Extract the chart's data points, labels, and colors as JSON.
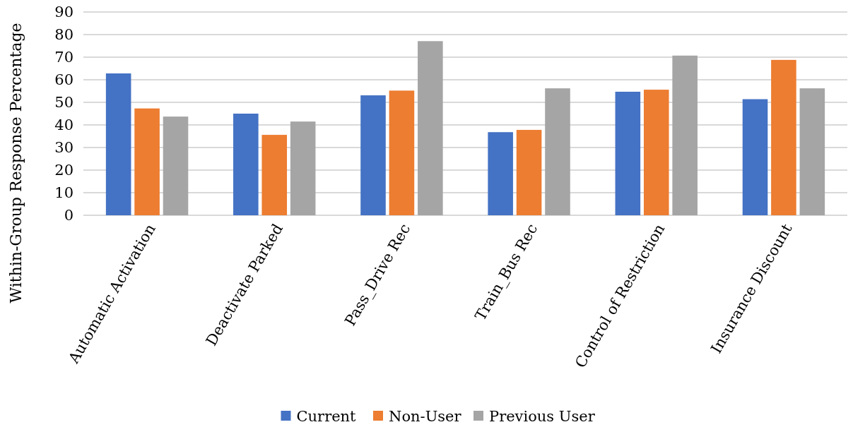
{
  "chart_data": {
    "type": "bar",
    "ylabel": "Within-Group Response Percentage",
    "categories": [
      "Automatic Activation",
      "Deactivate Parked",
      "Pass_Drive Rec",
      "Train_Bus Rec",
      "Control of Restriction",
      "Insurance Discount"
    ],
    "series": [
      {
        "name": "Current",
        "color": "#4472c4",
        "values": [
          62.8,
          45.0,
          53.1,
          36.8,
          54.7,
          51.4
        ]
      },
      {
        "name": "Non-User",
        "color": "#ed7d31",
        "values": [
          47.3,
          35.6,
          55.2,
          37.8,
          55.6,
          68.8
        ]
      },
      {
        "name": "Previous User",
        "color": "#a5a5a5",
        "values": [
          43.7,
          41.5,
          77.1,
          56.2,
          70.7,
          56.2
        ]
      }
    ],
    "ylim": [
      0,
      90
    ],
    "yticks": [
      0,
      10,
      20,
      30,
      40,
      50,
      60,
      70,
      80,
      90
    ],
    "grid": "y",
    "legend": "bottom"
  }
}
